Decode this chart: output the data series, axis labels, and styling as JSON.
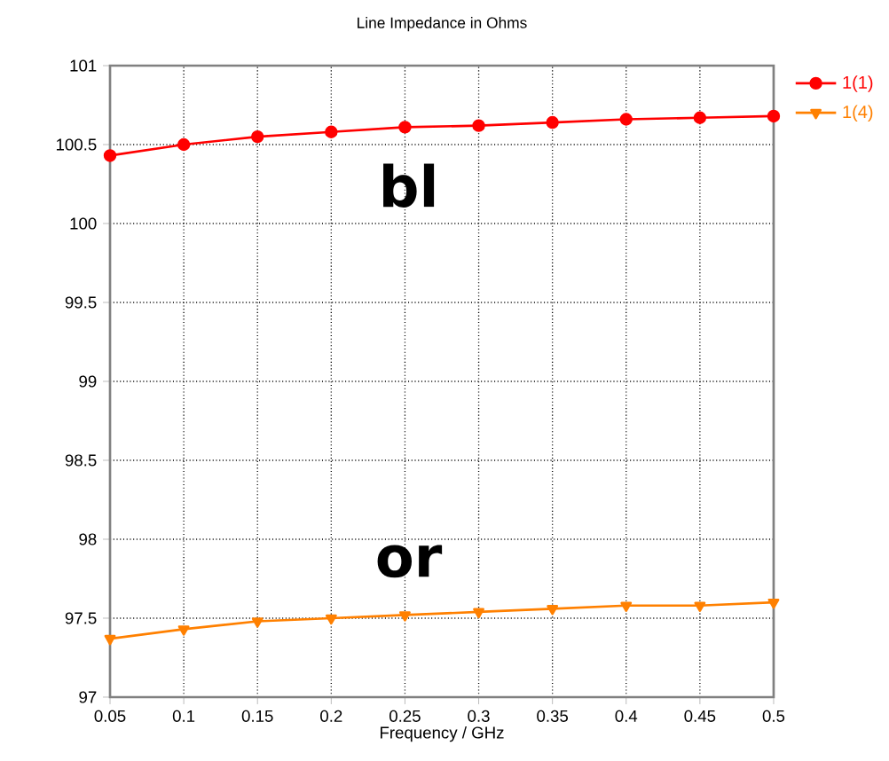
{
  "chart_data": {
    "type": "line",
    "title": "Line Impedance in Ohms",
    "xlabel": "Frequency / GHz",
    "x": [
      0.05,
      0.1,
      0.15,
      0.2,
      0.25,
      0.3,
      0.35,
      0.4,
      0.45,
      0.5
    ],
    "series": [
      {
        "name": "1(1)",
        "color": "#ff0000",
        "marker": "circle",
        "values": [
          100.43,
          100.5,
          100.55,
          100.58,
          100.61,
          100.62,
          100.64,
          100.66,
          100.67,
          100.68
        ]
      },
      {
        "name": "1(4)",
        "color": "#ff8000",
        "marker": "triangle",
        "values": [
          97.37,
          97.43,
          97.48,
          97.5,
          97.52,
          97.54,
          97.56,
          97.58,
          97.58,
          97.6
        ]
      }
    ],
    "xlim": [
      0.05,
      0.5
    ],
    "ylim": [
      97,
      101
    ],
    "xticks": [
      0.05,
      0.1,
      0.15,
      0.2,
      0.25,
      0.3,
      0.35,
      0.4,
      0.45,
      0.5
    ],
    "yticks": [
      97,
      97.5,
      98,
      98.5,
      99,
      99.5,
      100,
      100.5,
      101
    ],
    "grid": true,
    "legend": "top right",
    "line_style": "solid",
    "annotations": [
      "bl",
      "or"
    ]
  }
}
